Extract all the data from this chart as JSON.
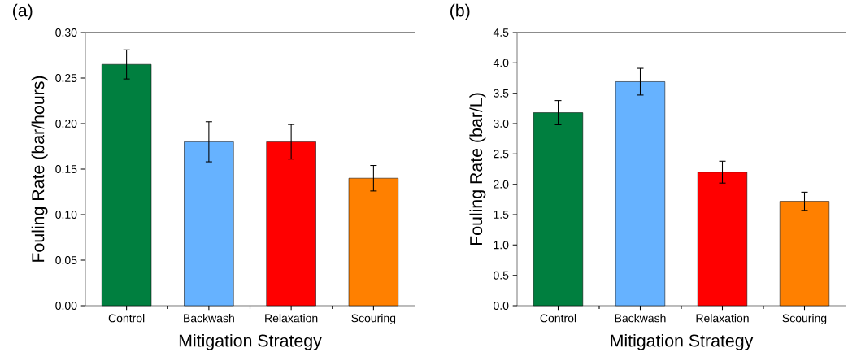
{
  "chart_data": [
    {
      "type": "bar",
      "title": "(a)",
      "xlabel": "Mitigation Strategy",
      "ylabel": "Fouling Rate (bar/hours)",
      "categories": [
        "Control",
        "Backwash",
        "Relaxation",
        "Scouring"
      ],
      "values": [
        0.265,
        0.18,
        0.18,
        0.14
      ],
      "colors": [
        "#007f3f",
        "#66b2ff",
        "#ff0000",
        "#ff8000"
      ],
      "errors": [
        [
          0.249,
          0.281
        ],
        [
          0.158,
          0.202
        ],
        [
          0.161,
          0.199
        ],
        [
          0.126,
          0.154
        ]
      ],
      "ylim": [
        0,
        0.3
      ],
      "yticks": [
        {
          "value": 0,
          "label": "0.00"
        },
        {
          "value": 0.05,
          "label": "0.05"
        },
        {
          "value": 0.1,
          "label": "0.10"
        },
        {
          "value": 0.15,
          "label": "0.15"
        },
        {
          "value": 0.2,
          "label": "0.20"
        },
        {
          "value": 0.25,
          "label": "0.25"
        },
        {
          "value": 0.3,
          "label": "0.30"
        }
      ]
    },
    {
      "type": "bar",
      "title": "(b)",
      "xlabel": "Mitigation Strategy",
      "ylabel": "Fouling Rate (bar/L)",
      "categories": [
        "Control",
        "Backwash",
        "Relaxation",
        "Scouring"
      ],
      "values": [
        3.18,
        3.69,
        2.2,
        1.72
      ],
      "colors": [
        "#007f3f",
        "#66b2ff",
        "#ff0000",
        "#ff8000"
      ],
      "errors": [
        [
          2.98,
          3.38
        ],
        [
          3.47,
          3.91
        ],
        [
          2.02,
          2.38
        ],
        [
          1.57,
          1.87
        ]
      ],
      "ylim": [
        0,
        4.5
      ],
      "yticks": [
        {
          "value": 0,
          "label": "0.0"
        },
        {
          "value": 0.5,
          "label": "0.5"
        },
        {
          "value": 1,
          "label": "1.0"
        },
        {
          "value": 1.5,
          "label": "1.5"
        },
        {
          "value": 2,
          "label": "2.0"
        },
        {
          "value": 2.5,
          "label": "2.5"
        },
        {
          "value": 3,
          "label": "3.0"
        },
        {
          "value": 3.5,
          "label": "3.5"
        },
        {
          "value": 4,
          "label": "4.0"
        },
        {
          "value": 4.5,
          "label": "4.5"
        }
      ]
    }
  ]
}
